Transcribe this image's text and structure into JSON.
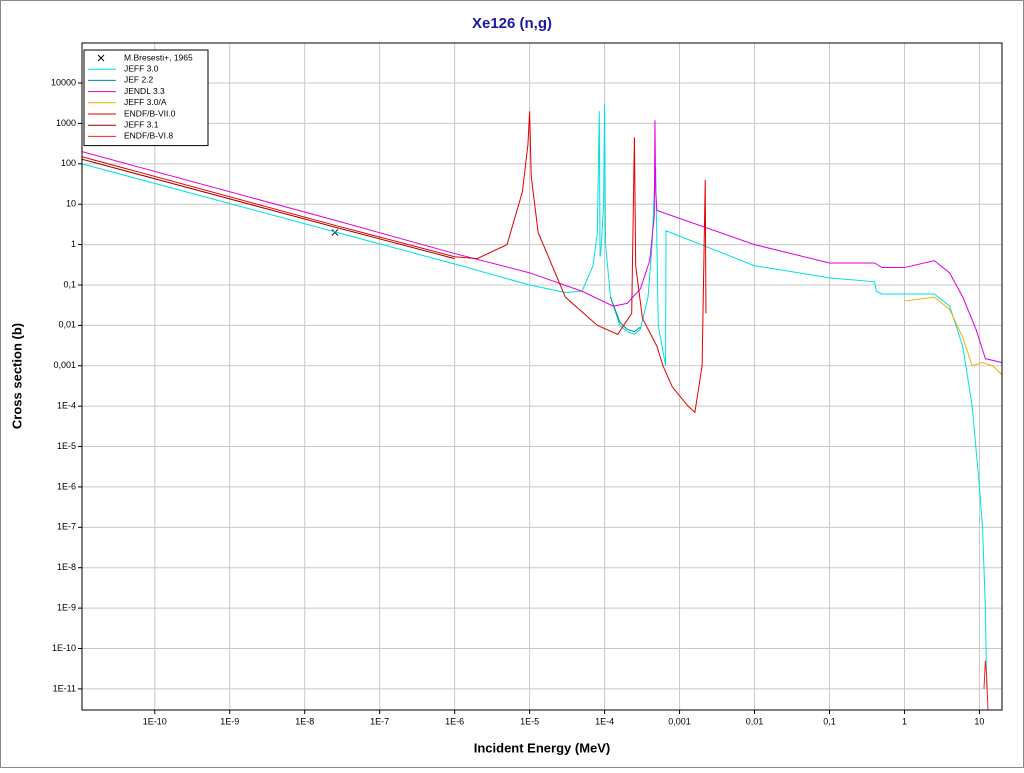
{
  "chart_data": {
    "type": "line",
    "title": "Xe126 (n,g)",
    "x_label": "Incident Energy (MeV)",
    "y_label": "Cross section (b)",
    "xscale": "log",
    "yscale": "log",
    "grid": true,
    "legend": "top-left",
    "xlim": [
      1.07e-11,
      20
    ],
    "ylim": [
      3e-12,
      98000
    ],
    "xticks": [
      {
        "value": 1e-10,
        "label": "1E-10"
      },
      {
        "value": 1e-09,
        "label": "1E-9"
      },
      {
        "value": 1e-08,
        "label": "1E-8"
      },
      {
        "value": 1e-07,
        "label": "1E-7"
      },
      {
        "value": 1e-06,
        "label": "1E-6"
      },
      {
        "value": 1e-05,
        "label": "1E-5"
      },
      {
        "value": 0.0001,
        "label": "1E-4"
      },
      {
        "value": 0.001,
        "label": "0,001"
      },
      {
        "value": 0.01,
        "label": "0,01"
      },
      {
        "value": 0.1,
        "label": "0,1"
      },
      1,
      10
    ],
    "yticks": [
      10000,
      1000,
      100,
      10,
      1,
      {
        "value": 0.1,
        "label": "0,1"
      },
      {
        "value": 0.01,
        "label": "0,01"
      },
      {
        "value": 0.001,
        "label": "0,001"
      },
      {
        "value": 0.0001,
        "label": "1E-4"
      },
      {
        "value": 1e-05,
        "label": "1E-5"
      },
      {
        "value": 1e-06,
        "label": "1E-6"
      },
      {
        "value": 1e-07,
        "label": "1E-7"
      },
      {
        "value": 1e-08,
        "label": "1E-8"
      },
      {
        "value": 1e-09,
        "label": "1E-9"
      },
      {
        "value": 1e-10,
        "label": "1E-10"
      },
      {
        "value": 1e-11,
        "label": "1E-11"
      }
    ],
    "series": [
      {
        "name": "M.Bresesti+, 1965",
        "color": "#000000",
        "marker": "x",
        "line": false,
        "x": [
          2.53e-08
        ],
        "values": [
          2
        ]
      },
      {
        "name": "JEFF 3.0",
        "color": "#00e0e0",
        "x": [
          1.07e-11,
          2.53e-08,
          1e-06,
          1e-05,
          3e-05,
          5e-05,
          7e-05,
          8e-05,
          8.5e-05,
          8.7e-05,
          9e-05,
          9.7e-05,
          0.0001,
          0.000103,
          0.00012,
          0.00016,
          0.0002,
          0.00025,
          0.0003,
          0.00038,
          0.00043,
          0.00046,
          0.00048,
          0.00052,
          0.00064,
          0.00065,
          0.00066,
          0.01,
          0.1,
          0.4,
          0.42,
          0.5,
          1,
          2.5,
          4,
          6,
          8,
          10,
          11,
          12,
          12.5
        ],
        "values": [
          100,
          2.06,
          0.33,
          0.1,
          0.065,
          0.07,
          0.3,
          2,
          2000,
          0.5,
          0.8,
          10,
          3000,
          1,
          0.05,
          0.01,
          0.007,
          0.006,
          0.008,
          0.05,
          1,
          20,
          80,
          0.01,
          0.0012,
          0.001,
          2.2,
          0.3,
          0.15,
          0.12,
          0.07,
          0.06,
          0.06,
          0.06,
          0.03,
          0.003,
          0.0001,
          1e-06,
          1e-07,
          1e-09,
          1e-11
        ]
      },
      {
        "name": "JEF 2.2",
        "color": "#008b8b",
        "x": [
          0.00012,
          0.00016,
          0.0002,
          0.00025,
          0.0003
        ],
        "values": [
          0.05,
          0.012,
          0.008,
          0.007,
          0.009
        ]
      },
      {
        "name": "JENDL 3.3",
        "color": "#e000e0",
        "x": [
          1.07e-11,
          2.53e-08,
          1e-06,
          1e-05,
          5e-05,
          0.00013,
          0.0002,
          0.0003,
          0.0004,
          0.00046,
          0.00047,
          0.00048,
          0.0005,
          0.01,
          0.1,
          0.4,
          0.5,
          1,
          2.5,
          4,
          6,
          9,
          12,
          20
        ],
        "values": [
          200,
          4,
          0.6,
          0.2,
          0.07,
          0.03,
          0.035,
          0.08,
          0.4,
          5,
          1200,
          20,
          7,
          1,
          0.35,
          0.35,
          0.27,
          0.27,
          0.4,
          0.2,
          0.05,
          0.008,
          0.0015,
          0.0012
        ]
      },
      {
        "name": "JEFF 3.0/A",
        "color": "#f0b000",
        "x": [
          1,
          2.5,
          4,
          6,
          8,
          11,
          15,
          20
        ],
        "values": [
          0.04,
          0.05,
          0.025,
          0.005,
          0.001,
          0.0012,
          0.001,
          0.0006
        ]
      },
      {
        "name": "ENDF/B-VII.0",
        "color": "#e00000",
        "x": [
          1.07e-11,
          2.53e-08,
          1e-06,
          2e-06,
          5e-06,
          8e-06,
          9.5e-06,
          1e-05,
          1.05e-05,
          1.3e-05,
          3e-05,
          8e-05,
          0.00015,
          0.00023,
          0.00025,
          0.00026,
          0.00032,
          0.0005,
          0.0006,
          0.0008,
          0.0013,
          0.0016,
          0.002,
          0.0022,
          0.00225
        ],
        "values": [
          150,
          3,
          0.5,
          0.45,
          1,
          20,
          300,
          2000,
          50,
          2,
          0.05,
          0.01,
          0.006,
          0.02,
          450,
          0.3,
          0.015,
          0.003,
          0.001,
          0.0003,
          0.0001,
          7e-05,
          0.001,
          40,
          0.02
        ]
      },
      {
        "name": "JEFF 3.1",
        "color": "#a00000",
        "x": [
          1.07e-11,
          2.53e-08,
          1e-06
        ],
        "values": [
          130,
          2.7,
          0.45
        ]
      },
      {
        "name": "ENDF/B-VI.8",
        "color": "#ff2020",
        "x": [
          11.5,
          12,
          12.5,
          13
        ],
        "values": [
          1e-11,
          5e-11,
          2e-11,
          3e-12
        ]
      }
    ]
  }
}
